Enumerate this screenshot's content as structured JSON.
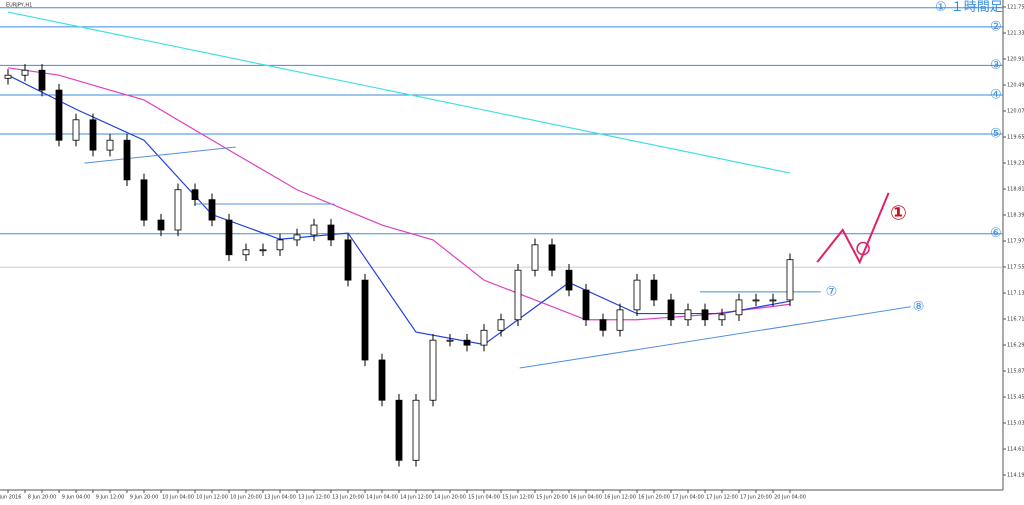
{
  "chart_data": {
    "type": "candlestick",
    "title": "EURJPY,H1",
    "categories": [
      "8 Jun 2016",
      null,
      "8 Jun 20:00",
      null,
      "9 Jun 04:00",
      null,
      "9 Jun 12:00",
      null,
      "9 Jun 20:00",
      null,
      "10 Jun 04:00",
      null,
      "10 Jun 12:00",
      null,
      "10 Jun 20:00",
      null,
      "13 Jun 04:00",
      null,
      "13 Jun 12:00",
      null,
      "13 Jun 20:00",
      null,
      "14 Jun 04:00",
      null,
      "14 Jun 12:00",
      null,
      "14 Jun 20:00",
      null,
      "15 Jun 04:00",
      null,
      "15 Jun 12:00",
      null,
      "15 Jun 20:00",
      null,
      "16 Jun 04:00",
      null,
      "16 Jun 12:00",
      null,
      "16 Jun 20:00",
      null,
      "17 Jun 04:00",
      null,
      "17 Jun 12:00",
      null,
      "17 Jun 20:00",
      null,
      "20 Jun 04:00"
    ],
    "open": [
      120.6,
      120.65,
      120.73,
      120.41,
      119.6,
      119.93,
      119.44,
      119.6,
      118.96,
      118.31,
      118.15,
      118.8,
      118.64,
      118.31,
      117.75,
      117.83,
      117.83,
      117.99,
      118.07,
      118.23,
      117.99,
      117.34,
      116.05,
      115.4,
      114.43,
      115.4,
      116.37,
      116.37,
      116.29,
      116.53,
      116.7,
      117.5,
      117.91,
      117.5,
      117.18,
      116.7,
      116.53,
      116.86,
      117.34,
      117.02,
      116.7,
      116.86,
      116.7,
      116.78,
      117.02,
      117.02,
      117.02
    ],
    "high": [
      120.75,
      120.83,
      120.83,
      120.51,
      120.03,
      120.03,
      119.7,
      119.7,
      119.06,
      118.41,
      118.9,
      118.9,
      118.74,
      118.41,
      117.93,
      117.93,
      118.09,
      118.17,
      118.33,
      118.33,
      118.09,
      117.44,
      116.15,
      115.5,
      115.5,
      116.47,
      116.47,
      116.47,
      116.63,
      116.8,
      117.6,
      118.01,
      118.01,
      117.6,
      117.28,
      116.8,
      116.96,
      117.44,
      117.44,
      117.12,
      116.96,
      116.96,
      116.88,
      117.12,
      117.12,
      117.12,
      117.77
    ],
    "low": [
      120.5,
      120.55,
      120.31,
      119.5,
      119.5,
      119.34,
      119.34,
      118.86,
      118.21,
      118.05,
      118.05,
      118.54,
      118.21,
      117.65,
      117.65,
      117.73,
      117.73,
      117.89,
      117.97,
      117.89,
      117.24,
      115.95,
      115.3,
      114.33,
      114.33,
      115.3,
      116.27,
      116.19,
      116.19,
      116.43,
      116.6,
      117.4,
      117.4,
      117.08,
      116.6,
      116.43,
      116.43,
      116.76,
      116.92,
      116.6,
      116.6,
      116.6,
      116.6,
      116.68,
      116.92,
      116.92,
      116.92
    ],
    "close": [
      120.65,
      120.73,
      120.41,
      119.6,
      119.93,
      119.44,
      119.6,
      118.96,
      118.31,
      118.15,
      118.8,
      118.64,
      118.31,
      117.75,
      117.83,
      117.83,
      117.99,
      118.07,
      118.23,
      117.99,
      117.34,
      116.05,
      115.4,
      114.43,
      115.4,
      116.37,
      116.37,
      116.29,
      116.53,
      116.7,
      117.5,
      117.91,
      117.5,
      117.18,
      116.7,
      116.53,
      116.86,
      117.34,
      117.02,
      116.7,
      116.86,
      116.7,
      116.78,
      117.02,
      117.02,
      117.02,
      117.67
    ],
    "ylim": [
      113.95,
      121.865
    ],
    "yticks": [
      121.752,
      121.332,
      120.912,
      120.492,
      120.072,
      119.652,
      119.232,
      118.812,
      118.392,
      117.972,
      117.552,
      117.132,
      116.712,
      116.292,
      115.872,
      115.452,
      115.032,
      114.612,
      114.192
    ],
    "overlays": [
      {
        "color": "#e040c0",
        "points": [
          [
            0,
            120.77
          ],
          [
            3,
            120.65
          ],
          [
            8,
            120.25
          ],
          [
            13,
            119.44
          ],
          [
            17,
            118.8
          ],
          [
            22,
            118.23
          ],
          [
            25,
            117.99
          ],
          [
            28,
            117.34
          ],
          [
            31,
            117.02
          ],
          [
            34,
            116.7
          ],
          [
            37,
            116.7
          ],
          [
            41,
            116.78
          ],
          [
            46,
            116.95
          ]
        ]
      },
      {
        "color": "#2040e0",
        "points": [
          [
            0,
            120.65
          ],
          [
            4,
            120.1
          ],
          [
            8,
            119.6
          ],
          [
            12,
            118.4
          ],
          [
            16,
            118.0
          ],
          [
            20,
            118.1
          ],
          [
            24,
            116.5
          ],
          [
            28,
            116.3
          ],
          [
            33,
            117.3
          ],
          [
            37,
            116.8
          ],
          [
            42,
            116.8
          ],
          [
            46,
            117.0
          ]
        ]
      },
      {
        "color": "#40e0e0",
        "points": [
          [
            0,
            121.67
          ],
          [
            46,
            119.07
          ]
        ]
      }
    ],
    "levels": [
      {
        "price": 121.74,
        "label": "① １時間足"
      },
      {
        "price": 121.43,
        "label": "②"
      },
      {
        "price": 120.81,
        "label": "③"
      },
      {
        "price": 120.33,
        "label": "④"
      },
      {
        "price": 119.7,
        "label": "⑤"
      },
      {
        "price": 118.09,
        "label": "⑥"
      }
    ],
    "short_level": {
      "start": 40.7,
      "end": 47.8,
      "price": 117.15,
      "label": "⑦"
    },
    "trendlines": [
      {
        "points": [
          [
            30.1,
            115.92
          ],
          [
            53.1,
            116.91
          ]
        ],
        "label": "⑧"
      },
      {
        "points": [
          [
            4.5,
            119.23
          ],
          [
            13.4,
            119.49
          ]
        ]
      },
      {
        "points": [
          [
            11,
            118.57
          ],
          [
            19.2,
            118.57
          ]
        ]
      }
    ],
    "current_price": 117.55,
    "scenario": {
      "color": "#e0206a",
      "points": [
        [
          47.6,
          117.63
        ],
        [
          49.1,
          118.15
        ],
        [
          50.1,
          117.63
        ],
        [
          51.8,
          118.75
        ]
      ],
      "circle": [
        50.3,
        117.85
      ],
      "label": "①"
    }
  }
}
